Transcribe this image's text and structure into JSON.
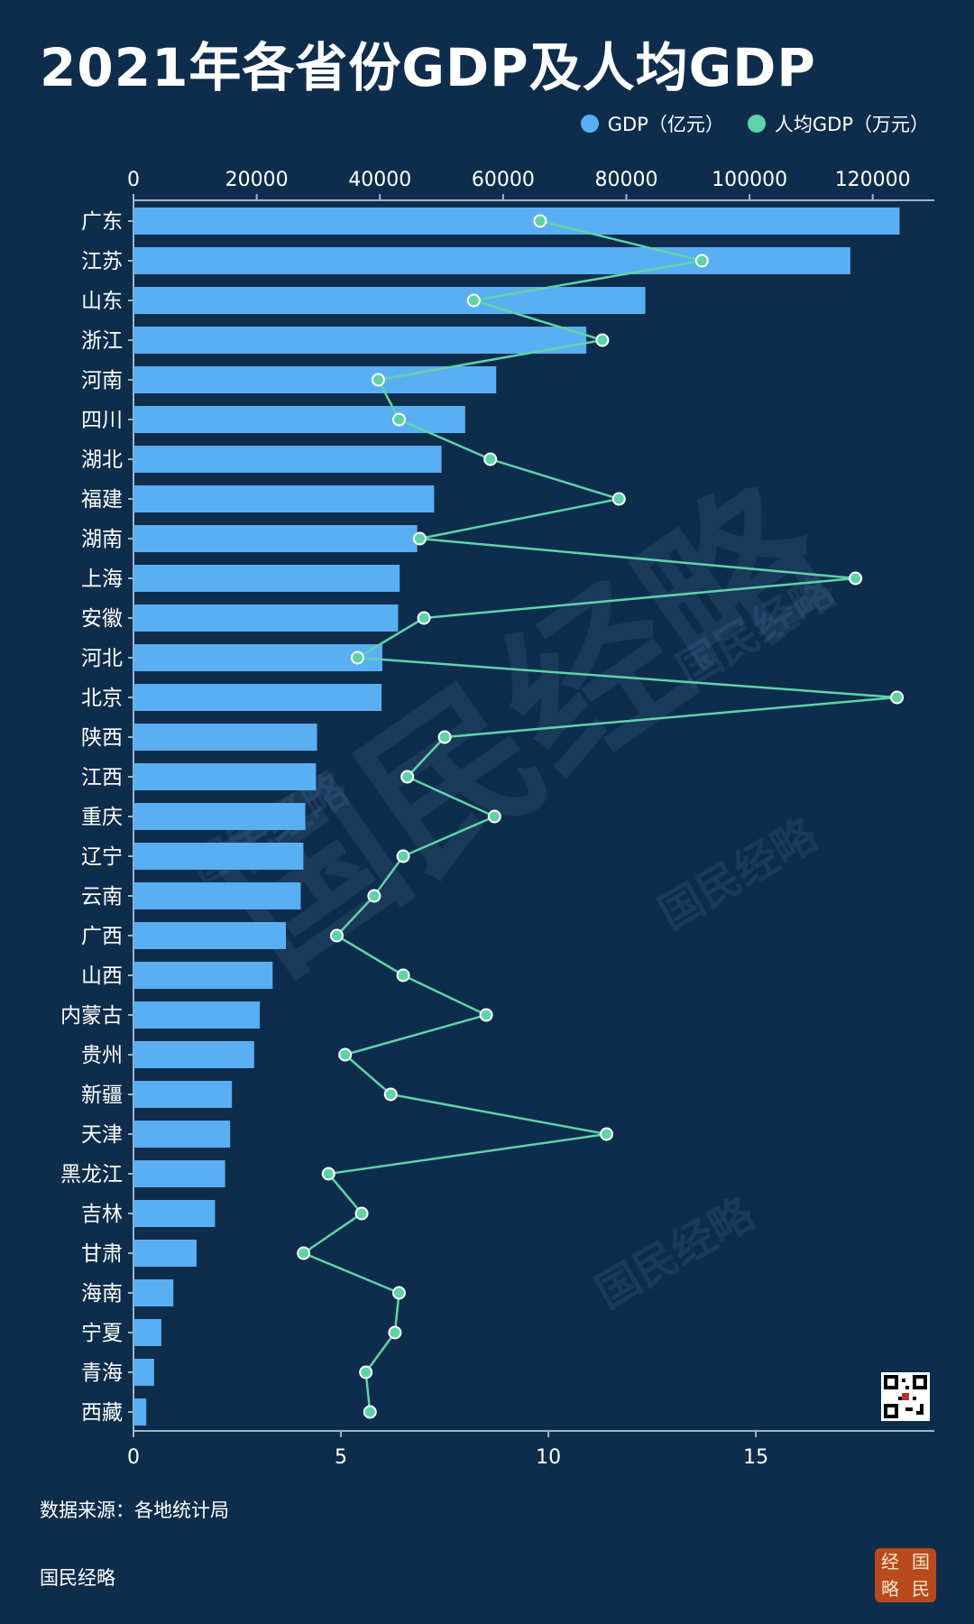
{
  "title": "2021年各省份GDP及人均GDP",
  "legend": [
    {
      "label": "GDP（亿元）",
      "color": "#5aaef2"
    },
    {
      "label": "人均GDP（万元）",
      "color": "#5fd3a8"
    }
  ],
  "source": "数据来源：各地统计局",
  "brand": "国民经略",
  "seal": [
    "经",
    "国",
    "略",
    "民"
  ],
  "chart_data": {
    "type": "bar",
    "orientation": "horizontal",
    "categories": [
      "广东",
      "江苏",
      "山东",
      "浙江",
      "河南",
      "四川",
      "湖北",
      "福建",
      "湖南",
      "上海",
      "安徽",
      "河北",
      "北京",
      "陕西",
      "江西",
      "重庆",
      "辽宁",
      "云南",
      "广西",
      "山西",
      "内蒙古",
      "贵州",
      "新疆",
      "天津",
      "黑龙江",
      "吉林",
      "甘肃",
      "海南",
      "宁夏",
      "青海",
      "西藏"
    ],
    "series": [
      {
        "name": "GDP（亿元）",
        "type": "bar",
        "axis": "top",
        "color": "#5aaef2",
        "values": [
          124370,
          116364,
          83096,
          73516,
          58887,
          53851,
          50013,
          48810,
          46063,
          43215,
          42959,
          40391,
          40270,
          29801,
          29620,
          27894,
          27584,
          27147,
          24741,
          22590,
          20514,
          19586,
          15984,
          15695,
          14879,
          13236,
          10243,
          6475,
          4522,
          3347,
          2080
        ]
      },
      {
        "name": "人均GDP（万元）",
        "type": "line",
        "axis": "bottom",
        "color": "#5fd3a8",
        "values": [
          9.8,
          13.7,
          8.2,
          11.3,
          5.9,
          6.4,
          8.6,
          11.7,
          6.9,
          17.4,
          7.0,
          5.4,
          18.4,
          7.5,
          6.6,
          8.7,
          6.5,
          5.8,
          4.9,
          6.5,
          8.5,
          5.1,
          6.2,
          11.4,
          4.7,
          5.5,
          4.1,
          6.4,
          6.3,
          5.6,
          5.7
        ]
      }
    ],
    "top_axis": {
      "range": [
        0,
        130000
      ],
      "ticks": [
        0,
        20000,
        40000,
        60000,
        80000,
        100000,
        120000
      ]
    },
    "bottom_axis": {
      "range": [
        0,
        19.3
      ],
      "ticks": [
        0,
        5,
        10,
        15
      ]
    }
  }
}
